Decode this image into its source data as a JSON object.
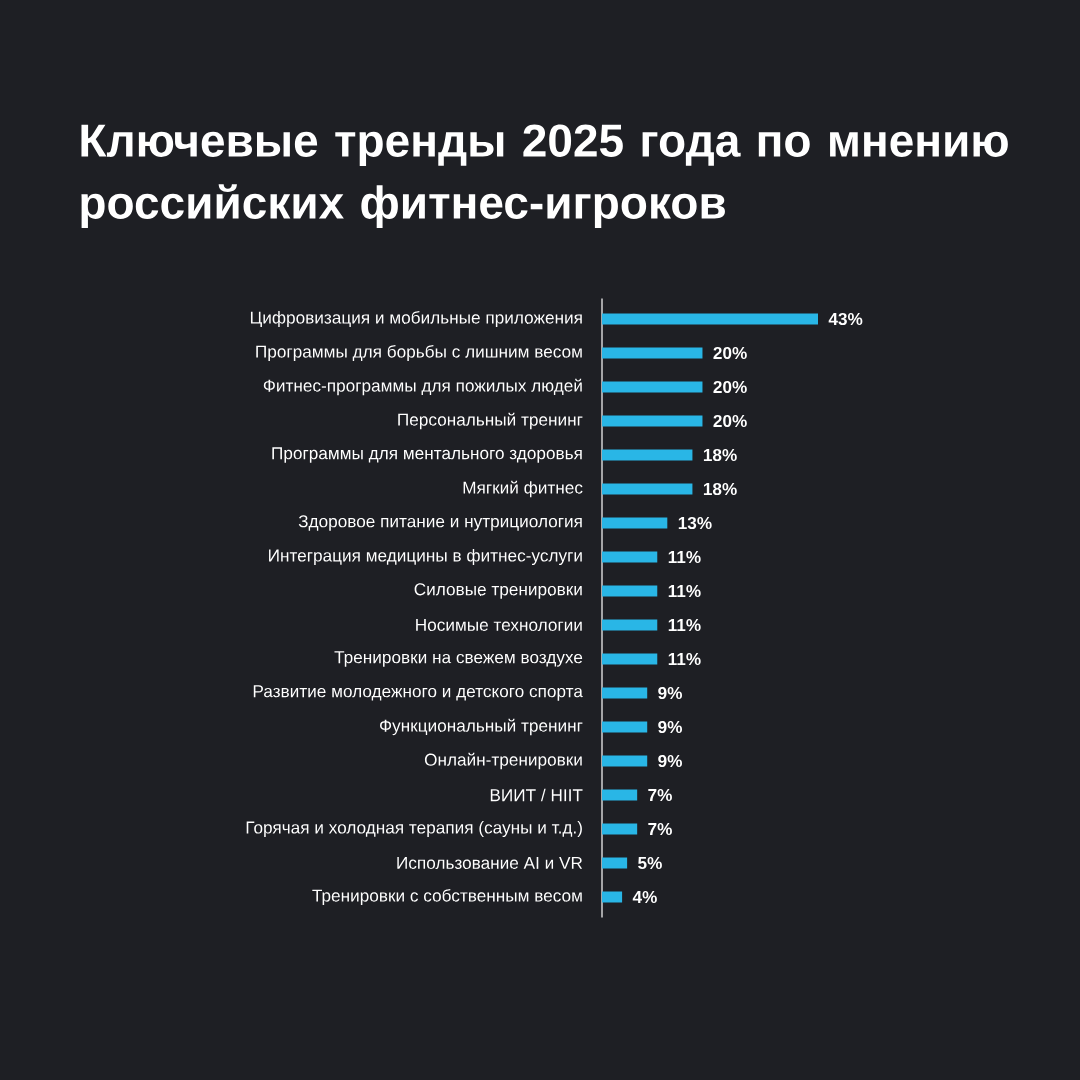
{
  "chart_data": {
    "type": "bar",
    "orientation": "horizontal",
    "title": "Ключевые тренды 2025 года по мнению российских фитнес-игроков",
    "categories": [
      "Цифровизация и мобильные приложения",
      "Программы для борьбы с лишним весом",
      "Фитнес-программы для пожилых людей",
      "Персональный тренинг",
      "Программы для ментального здоровья",
      "Мягкий фитнес",
      "Здоровое питание и нутрициология",
      "Интеграция медицины в фитнес-услуги",
      "Силовые тренировки",
      "Носимые технологии",
      "Тренировки на свежем воздухе",
      "Развитие молодежного и детского спорта",
      "Функциональный тренинг",
      "Онлайн-тренировки",
      "ВИИТ / HIIT",
      "Горячая и холодная терапия (сауны и т.д.)",
      "Использование AI и VR",
      "Тренировки с собственным весом"
    ],
    "values": [
      43,
      20,
      20,
      20,
      18,
      18,
      13,
      11,
      11,
      11,
      11,
      9,
      9,
      9,
      7,
      7,
      5,
      4
    ],
    "value_labels": [
      "43%",
      "20%",
      "20%",
      "20%",
      "18%",
      "18%",
      "13%",
      "11%",
      "11%",
      "11%",
      "11%",
      "9%",
      "9%",
      "9%",
      "7%",
      "7%",
      "5%",
      "4%"
    ],
    "color": "#29b6e6"
  }
}
